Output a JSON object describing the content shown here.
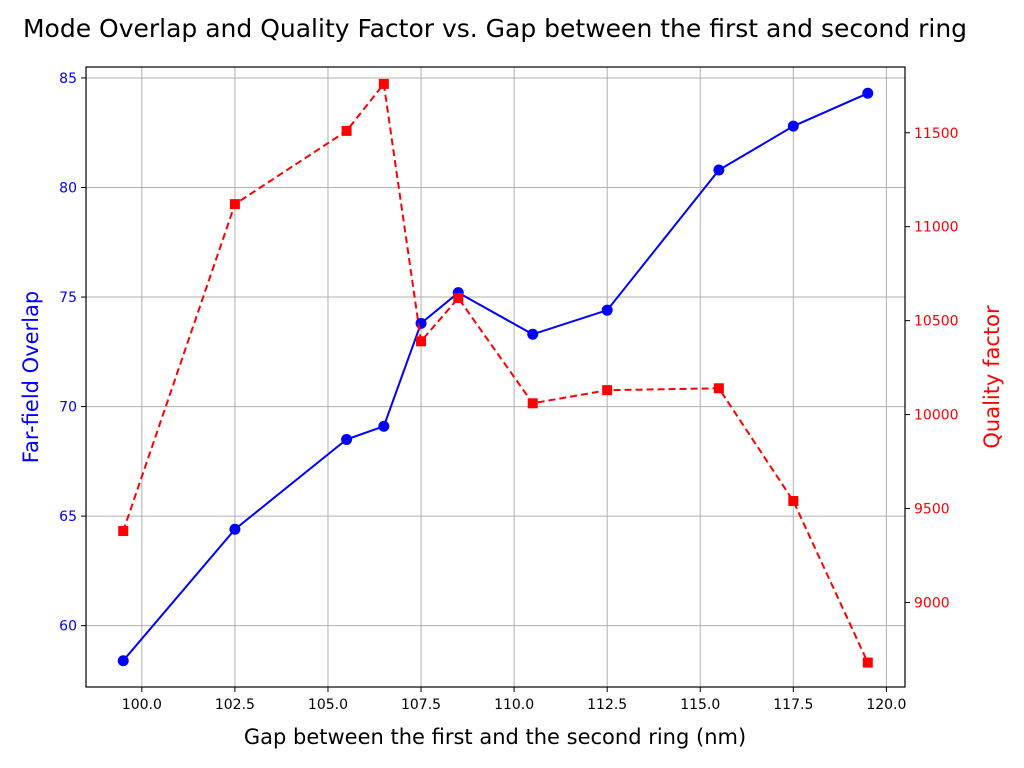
{
  "chart_data": {
    "type": "line",
    "title": "Mode Overlap and Quality Factor vs. Gap between the first and second ring",
    "xlabel": "Gap between the first and the second ring (nm)",
    "ylabel_left": "Far-field Overlap",
    "ylabel_right": "Quality factor",
    "xlim": [
      98.5,
      120.5
    ],
    "ylim_left": [
      57.2,
      85.5
    ],
    "ylim_right": [
      8550,
      11850
    ],
    "x_ticks": [
      100.0,
      102.5,
      105.0,
      107.5,
      110.0,
      112.5,
      115.0,
      117.5,
      120.0
    ],
    "x_tick_labels": [
      "100.0",
      "102.5",
      "105.0",
      "107.5",
      "110.0",
      "112.5",
      "115.0",
      "117.5",
      "120.0"
    ],
    "y_ticks_left": [
      60,
      65,
      70,
      75,
      80,
      85
    ],
    "y_tick_labels_left": [
      "60",
      "65",
      "70",
      "75",
      "80",
      "85"
    ],
    "y_ticks_right": [
      9000,
      9500,
      10000,
      10500,
      11000,
      11500
    ],
    "y_tick_labels_right": [
      "9000",
      "9500",
      "10000",
      "10500",
      "11000",
      "11500"
    ],
    "grid": true,
    "series": [
      {
        "axis": "left",
        "color": "#0000ff",
        "line_style": "solid",
        "marker": "circle",
        "x": [
          99.5,
          102.5,
          105.5,
          106.5,
          107.5,
          108.5,
          110.5,
          112.5,
          115.5,
          117.5,
          119.5
        ],
        "values": [
          58.4,
          64.4,
          68.5,
          69.1,
          73.8,
          75.2,
          73.3,
          74.4,
          80.8,
          82.8,
          84.3
        ]
      },
      {
        "axis": "right",
        "color": "#ff0000",
        "line_style": "dashed",
        "marker": "square",
        "x": [
          99.5,
          102.5,
          105.5,
          106.5,
          107.5,
          108.5,
          110.5,
          112.5,
          115.5,
          117.5,
          119.5
        ],
        "values": [
          9380,
          11120,
          11510,
          11760,
          10390,
          10620,
          10060,
          10130,
          10140,
          9540,
          8680
        ]
      }
    ]
  }
}
